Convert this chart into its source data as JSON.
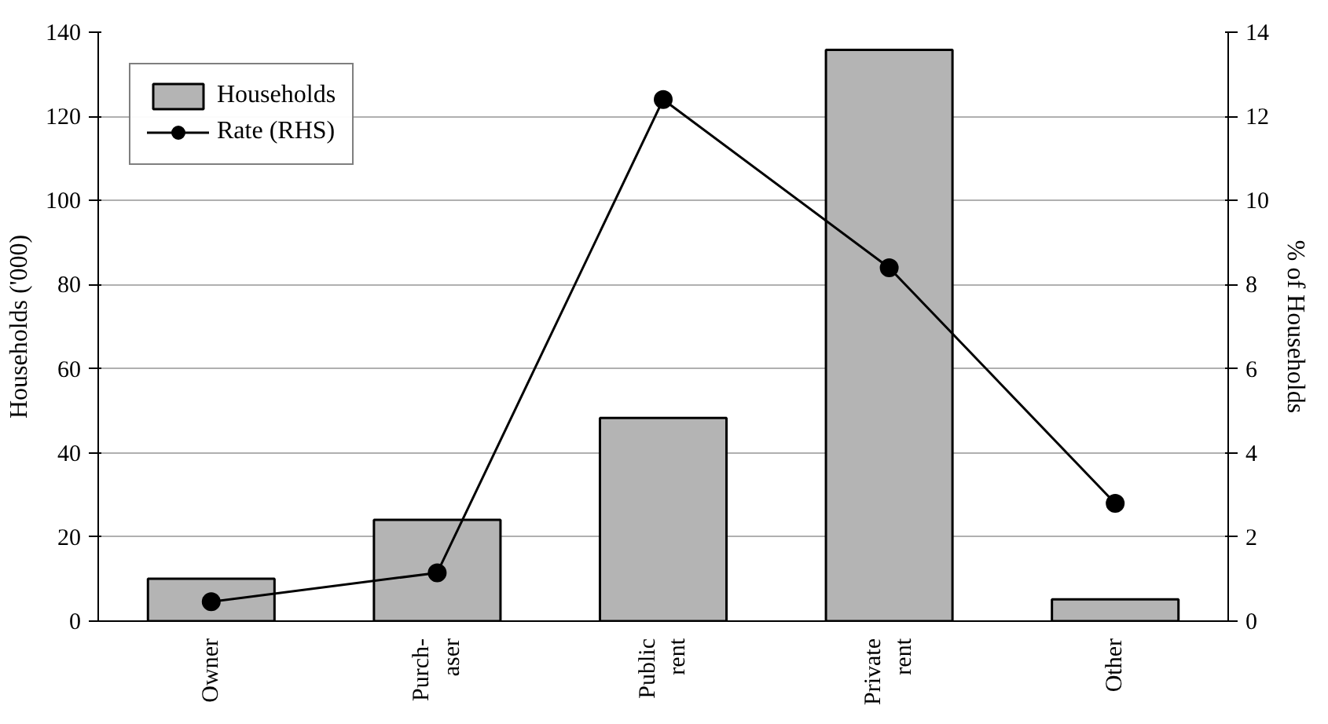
{
  "chart_data": {
    "type": "bar",
    "categories": [
      "Owner",
      "Purch-\naser",
      "Public\nrent",
      "Private\nrent",
      "Other"
    ],
    "ylabel": "Households ('000)",
    "y2label": "% of Households",
    "ylim": [
      0,
      140
    ],
    "yticks": [
      0,
      20,
      40,
      60,
      80,
      100,
      120,
      140
    ],
    "y2lim": [
      0,
      14
    ],
    "y2ticks": [
      0,
      2,
      4,
      6,
      8,
      10,
      12,
      14
    ],
    "grid": "y",
    "legend": "top left",
    "marker": "circle",
    "series": [
      {
        "name": "Households",
        "color": "#b4b4b4",
        "values": [
          10.1,
          24.1,
          48.3,
          135.8,
          5.2
        ]
      },
      {
        "name": "Rate (RHS)",
        "type": "line",
        "axis": "y2",
        "color": "#000000",
        "values": [
          0.46,
          1.15,
          12.4,
          8.4,
          2.8
        ]
      }
    ]
  }
}
